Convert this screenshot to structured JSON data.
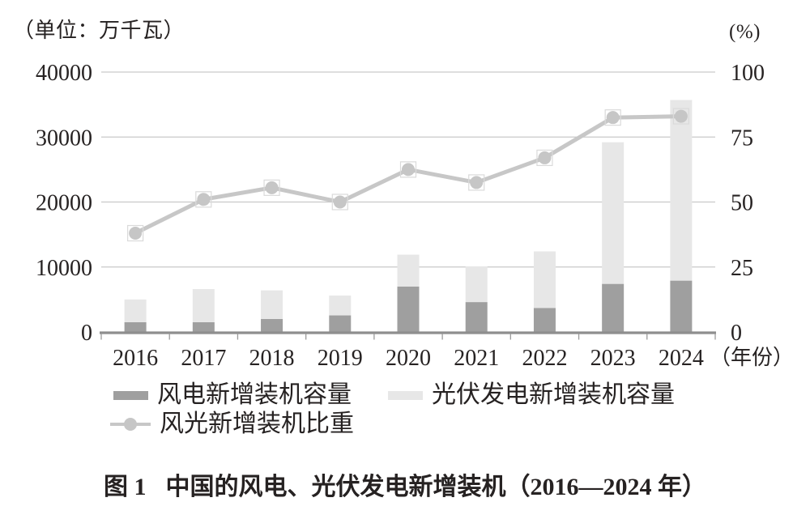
{
  "figure": {
    "caption_number": "图 1",
    "caption_title": "中国的风电、光伏发电新增装机（2016—2024 年）"
  },
  "colors": {
    "text": "#262222",
    "axis_line": "#8e8e8e",
    "gridline": "#c9c9c9",
    "x_tick": "#9a9a9a",
    "marker_outline": "#dadada"
  },
  "chart_data": {
    "type": "combo: stacked bar + line",
    "categories": [
      "2016",
      "2017",
      "2018",
      "2019",
      "2020",
      "2021",
      "2022",
      "2023",
      "2024"
    ],
    "series": [
      {
        "name": "风电新增装机容量",
        "type": "bar",
        "stack": "new-install",
        "axis": "left",
        "color": "#9f9f9f",
        "values": [
          1500,
          1500,
          2000,
          2550,
          7000,
          4600,
          3700,
          7400,
          7900
        ]
      },
      {
        "name": "光伏发电新增装机容量",
        "type": "bar",
        "stack": "new-install",
        "axis": "left",
        "color": "#e7e7e7",
        "values": [
          3500,
          5100,
          4400,
          3050,
          4900,
          5500,
          8700,
          21800,
          27800
        ]
      },
      {
        "name": "风光新增装机比重",
        "type": "line",
        "axis": "right",
        "color": "#c7c7c7",
        "marker_color": "#c6c6c6",
        "values": [
          38,
          51,
          55.5,
          50,
          62.5,
          57.5,
          67,
          82.5,
          83
        ]
      }
    ],
    "left_axis": {
      "unit_label": "（单位：万千瓦）",
      "ticks": [
        40000,
        30000,
        20000,
        10000,
        0
      ],
      "min": 0,
      "max": 40000
    },
    "right_axis": {
      "unit_label": "(%)",
      "ticks": [
        100,
        75,
        50,
        25,
        0
      ],
      "min": 0,
      "max": 100
    },
    "x_axis": {
      "suffix_label": "（年份）"
    },
    "grid": "horizontal gridlines only",
    "legend_position": "bottom-left, two rows"
  }
}
